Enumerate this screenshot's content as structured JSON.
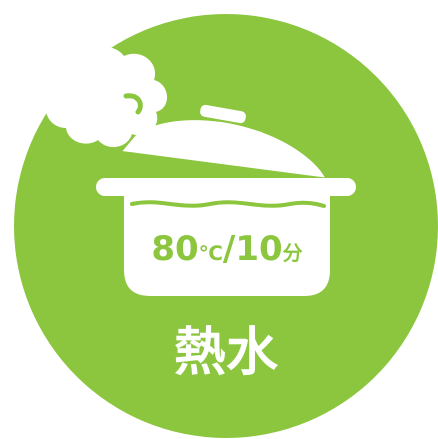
{
  "icon": {
    "name": "hot-water-pot-icon",
    "background_color": "#8cc63f",
    "foreground_color": "#ffffff"
  },
  "pot": {
    "temperature_value": "80",
    "temperature_unit": "℃",
    "separator": "/",
    "time_value": "10",
    "time_unit": "分"
  },
  "caption": {
    "label": "熱水"
  }
}
